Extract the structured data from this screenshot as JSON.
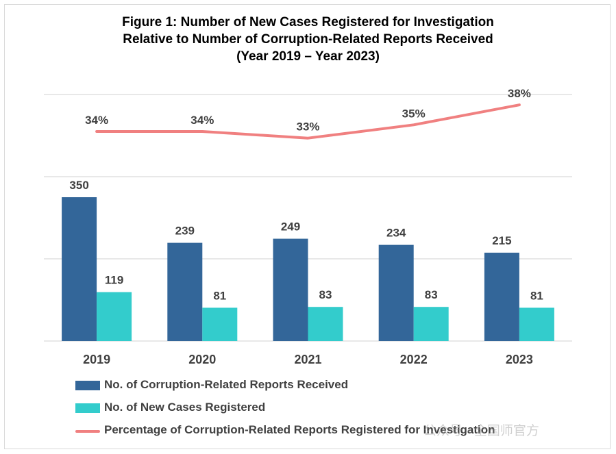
{
  "title_lines": [
    "Figure 1: Number of New Cases Registered for Investigation",
    "Relative to Number of Corruption-Related Reports Received",
    "(Year 2019 – Year 2023)"
  ],
  "watermark": "公众号 · 全国师官方",
  "chart_data": {
    "type": "bar",
    "title": "Figure 1: Number of New Cases Registered for Investigation Relative to Number of Corruption-Related Reports Received (Year 2019 – Year 2023)",
    "categories": [
      "2019",
      "2020",
      "2021",
      "2022",
      "2023"
    ],
    "series": [
      {
        "name": "No. of Corruption-Related Reports Received",
        "type": "bar",
        "values": [
          350,
          239,
          249,
          234,
          215
        ],
        "color": "#336699"
      },
      {
        "name": "No. of New Cases Registered",
        "type": "bar",
        "values": [
          119,
          81,
          83,
          83,
          81
        ],
        "color": "#33CCCC"
      },
      {
        "name": "Percentage of Corruption-Related Reports Registered for Investigation",
        "type": "line",
        "values": [
          34,
          34,
          33,
          35,
          38
        ],
        "labels": [
          "34%",
          "34%",
          "33%",
          "35%",
          "38%"
        ],
        "color": "#F08080"
      }
    ],
    "ylim": [
      0,
      600
    ],
    "grid": true,
    "legend_position": "bottom"
  }
}
